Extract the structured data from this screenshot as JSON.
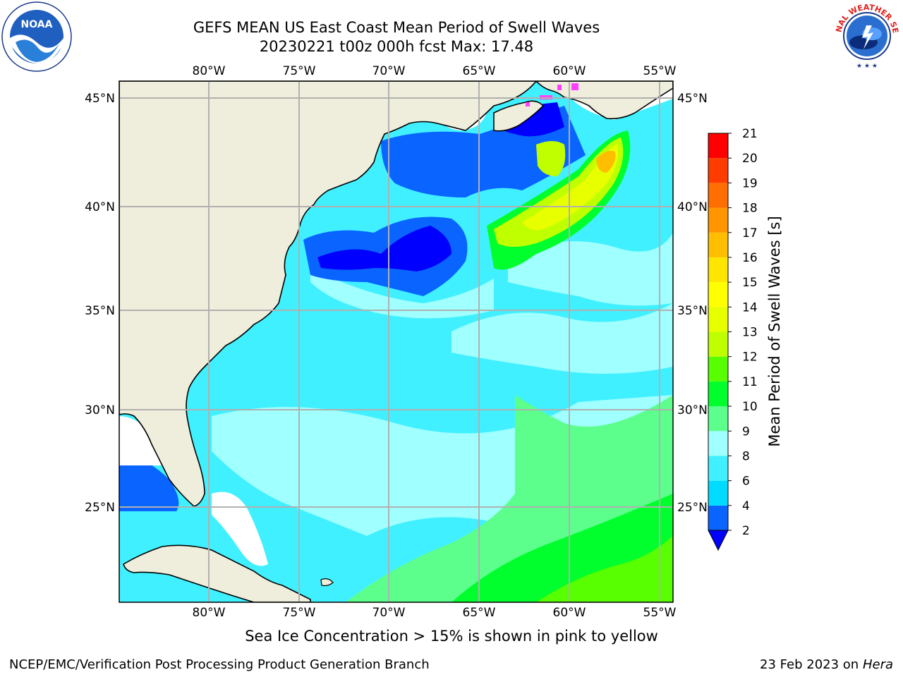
{
  "title_line1": "GEFS MEAN US East Coast Mean Period of Swell Waves",
  "title_line2": "20230221 t00z 000h fcst   Max: 17.48",
  "subtitle": "Sea Ice Concentration > 15% is shown in pink to yellow",
  "footer_left": "NCEP/EMC/Verification Post Processing Product Generation Branch",
  "footer_right_date": "23 Feb 2023 on",
  "footer_right_host": "Hera",
  "colorbar": {
    "label": "Mean Period of Swell Waves [s]",
    "ticks": [
      "2",
      "4",
      "6",
      "8",
      "9",
      "10",
      "11",
      "12",
      "13",
      "14",
      "15",
      "16",
      "17",
      "18",
      "19",
      "20",
      "21"
    ],
    "colors": [
      "#0a64ff",
      "#00dcff",
      "#40f0ff",
      "#a0ffff",
      "#5cff8c",
      "#00ff2c",
      "#58ff00",
      "#c0ff00",
      "#e8ff00",
      "#ffff00",
      "#ffe600",
      "#ffbe00",
      "#ff9600",
      "#ff6e00",
      "#ff3c00",
      "#ff0000"
    ],
    "under_color": "#0000ff"
  },
  "map": {
    "lon_labels": [
      "80°W",
      "75°W",
      "70°W",
      "65°W",
      "60°W",
      "55°W"
    ],
    "lat_labels": [
      "45°N",
      "40°N",
      "35°N",
      "30°N",
      "25°N"
    ],
    "land_color": "#efeedc"
  },
  "logos": {
    "noaa_text": "NOAA",
    "nws_text": "NATIONAL WEATHER SERVICE"
  }
}
